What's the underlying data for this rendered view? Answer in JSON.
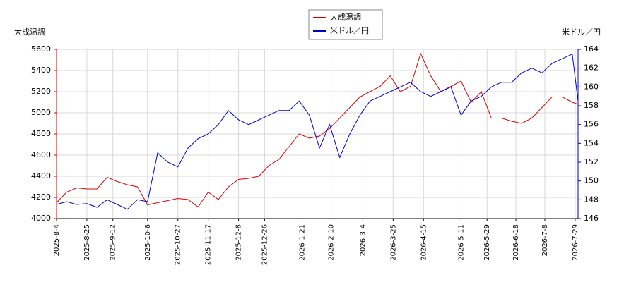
{
  "chart_data": {
    "type": "line",
    "y_label": "大成温調",
    "y2_label": "米ドル／円",
    "grid": true,
    "legend": "top-center",
    "x": [
      "2025-8-4",
      "2025-8-11",
      "2025-8-18",
      "2025-8-25",
      "2025-9-1",
      "2025-9-8",
      "2025-9-15",
      "2025-9-22",
      "2025-9-29",
      "2025-10-6",
      "2025-10-13",
      "2025-10-20",
      "2025-10-27",
      "2025-11-3",
      "2025-11-10",
      "2025-11-17",
      "2025-11-24",
      "2025-12-1",
      "2025-12-8",
      "2025-12-15",
      "2025-12-22",
      "2025-12-29",
      "2026-1-5",
      "2026-1-12",
      "2026-1-19",
      "2026-1-26",
      "2026-2-2",
      "2026-2-9",
      "2026-2-16",
      "2026-2-23",
      "2026-3-2",
      "2026-3-9",
      "2026-3-16",
      "2026-3-23",
      "2026-3-30",
      "2026-4-6",
      "2026-4-13",
      "2026-4-20",
      "2026-4-27",
      "2026-5-4",
      "2026-5-11",
      "2026-5-18",
      "2026-5-25",
      "2026-6-1",
      "2026-6-8",
      "2026-6-15",
      "2026-6-22",
      "2026-6-29",
      "2026-7-6",
      "2026-7-13",
      "2026-7-20",
      "2026-7-27",
      "2026-7-31"
    ],
    "xlim": [
      "2025-8-4",
      "2026-7-31"
    ],
    "xticks": [
      "2025-8-4",
      "2025-8-25",
      "2025-9-12",
      "2025-10-6",
      "2025-10-27",
      "2025-11-17",
      "2025-12-8",
      "2025-12-26",
      "2026-1-21",
      "2026-2-10",
      "2026-3-4",
      "2026-3-25",
      "2026-4-15",
      "2026-5-11",
      "2026-5-29",
      "2026-6-18",
      "2026-7-8",
      "2026-7-29"
    ],
    "ylim": [
      4000,
      5600
    ],
    "yticks": [
      4000,
      4200,
      4400,
      4600,
      4800,
      5000,
      5200,
      5400,
      5600
    ],
    "y2lim": [
      146,
      164
    ],
    "y2ticks": [
      146,
      148,
      150,
      152,
      154,
      156,
      158,
      160,
      162,
      164
    ],
    "series": [
      {
        "name": "大成温調",
        "color": "#dd0000",
        "values": [
          4150,
          4250,
          4290,
          4280,
          4280,
          4390,
          4350,
          4320,
          4300,
          4130,
          4150,
          4170,
          4190,
          4180,
          4110,
          4250,
          4180,
          4300,
          4370,
          4380,
          4400,
          4500,
          4560,
          4680,
          4800,
          4760,
          4780,
          4850,
          4950,
          5050,
          5150,
          5200,
          5250,
          5350,
          5200,
          5250,
          5560,
          5350,
          5200,
          5250,
          5300,
          5100,
          5200,
          4950,
          4950,
          4920,
          4900,
          4950,
          5050,
          5150,
          5150,
          5100,
          5080
        ]
      },
      {
        "name": "米ドル／円",
        "color": "#0000cc",
        "axis": "y2",
        "values": [
          147.5,
          147.8,
          147.5,
          147.6,
          147.2,
          148.0,
          147.5,
          147.0,
          148.0,
          147.8,
          153.0,
          152.0,
          151.5,
          153.5,
          154.5,
          155.0,
          156.0,
          157.5,
          156.5,
          156.0,
          156.5,
          157.0,
          157.5,
          157.5,
          158.5,
          157.0,
          153.5,
          156.0,
          152.5,
          155.0,
          157.0,
          158.5,
          159.0,
          159.5,
          160.0,
          160.5,
          159.5,
          159.0,
          159.5,
          160.0,
          157.0,
          158.5,
          159.0,
          160.0,
          160.5,
          160.5,
          161.5,
          162.0,
          161.5,
          162.5,
          163.0,
          163.5,
          158.5
        ]
      }
    ]
  }
}
